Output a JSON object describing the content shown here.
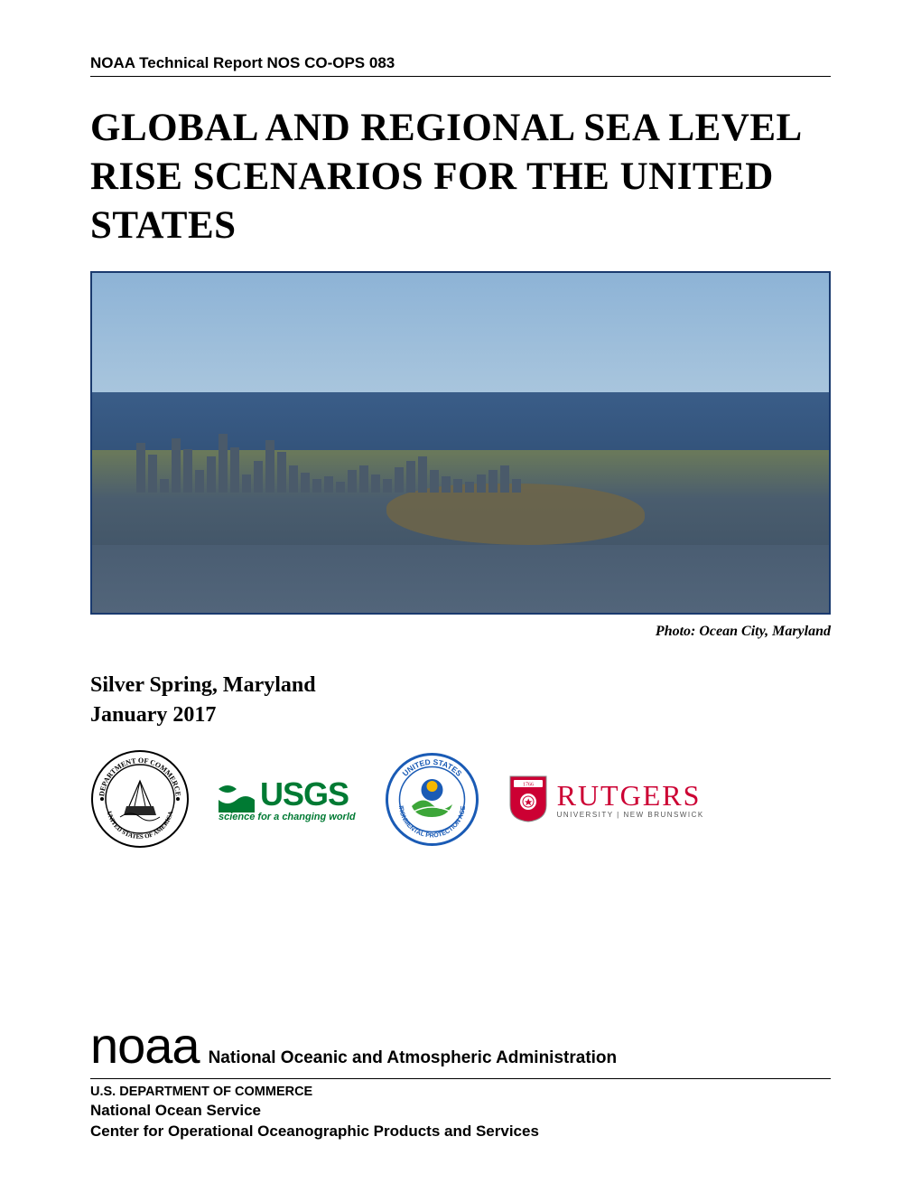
{
  "header": {
    "report_id": "NOAA Technical Report NOS CO-OPS 083"
  },
  "title": "GLOBAL AND REGIONAL SEA LEVEL RISE SCENARIOS FOR THE UNITED STATES",
  "photo": {
    "caption": "Photo: Ocean City, Maryland",
    "border_color": "#1a3a6e",
    "sky_top": "#8db3d6",
    "ocean_color": "#3a5d88",
    "land_color": "#4a5d6e",
    "building_color": "#4a5a6a",
    "building_heights": [
      55,
      42,
      15,
      60,
      48,
      25,
      40,
      65,
      50,
      20,
      35,
      58,
      45,
      30,
      22,
      15,
      18,
      12,
      25,
      30,
      20,
      15,
      28,
      35,
      40,
      25,
      18,
      15,
      12,
      20,
      25,
      30,
      15
    ]
  },
  "location": {
    "place": "Silver Spring, Maryland",
    "date": "January 2017"
  },
  "logos": {
    "doc": {
      "name": "Department of Commerce seal",
      "ring_color": "#000000"
    },
    "usgs": {
      "text": "USGS",
      "tagline": "science for a changing world",
      "color": "#007a33"
    },
    "epa": {
      "name": "EPA seal",
      "ring_color": "#1a5bb5",
      "leaf_color": "#3da639",
      "sun_color": "#f5b800"
    },
    "rutgers": {
      "text": "RUTGERS",
      "tagline": "UNIVERSITY | NEW BRUNSWICK",
      "color": "#cc0033",
      "shield_bg": "#cc0033"
    }
  },
  "footer": {
    "noaa_small": "noaa",
    "noaa_full": "National Oceanic and Atmospheric Administration",
    "dept": "U.S. DEPARTMENT OF COMMERCE",
    "service": "National Ocean Service",
    "center": "Center for Operational Oceanographic Products and Services"
  },
  "colors": {
    "text": "#000000",
    "bg": "#ffffff",
    "rule": "#000000"
  }
}
